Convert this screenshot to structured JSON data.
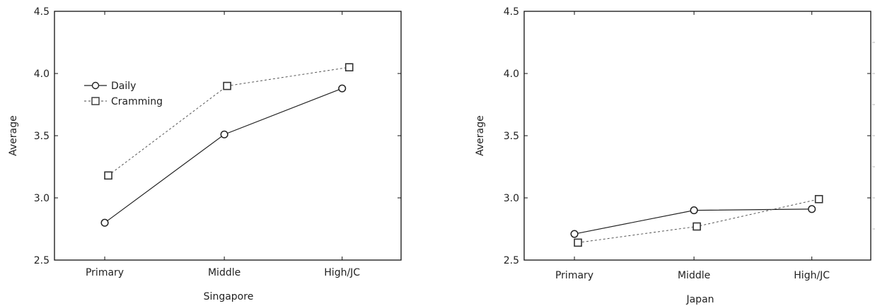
{
  "chart_data": [
    {
      "type": "line",
      "xlabel": "Singapore",
      "ylabel": "Average",
      "categories": [
        "Primary",
        "Middle",
        "High/JC"
      ],
      "ylim": [
        2.5,
        4.5
      ],
      "yticks": [
        "2.5",
        "3.0",
        "3.5",
        "4.0",
        "4.5"
      ],
      "ytick_values": [
        2.5,
        3.0,
        3.5,
        4.0,
        4.5
      ],
      "legend_position": "upper-left",
      "grid": false,
      "series": [
        {
          "name": "Daily",
          "marker": "circle",
          "line": "solid",
          "values": [
            2.8,
            3.51,
            3.88
          ]
        },
        {
          "name": "Cramming",
          "marker": "square",
          "line": "dashed",
          "values": [
            3.18,
            3.9,
            4.05
          ]
        }
      ]
    },
    {
      "type": "line",
      "xlabel": "Japan",
      "ylabel": "Average",
      "categories": [
        "Primary",
        "Middle",
        "High/JC"
      ],
      "ylim": [
        2.5,
        4.5
      ],
      "yticks": [
        "2.5",
        "3.0",
        "3.5",
        "4.0",
        "4.5"
      ],
      "ytick_values": [
        2.5,
        3.0,
        3.5,
        4.0,
        4.5
      ],
      "grid": false,
      "series": [
        {
          "marker": "circle",
          "line": "solid",
          "values": [
            2.71,
            2.9,
            2.91
          ]
        },
        {
          "marker": "square",
          "line": "dashed",
          "values": [
            2.64,
            2.77,
            2.99
          ]
        }
      ]
    }
  ]
}
